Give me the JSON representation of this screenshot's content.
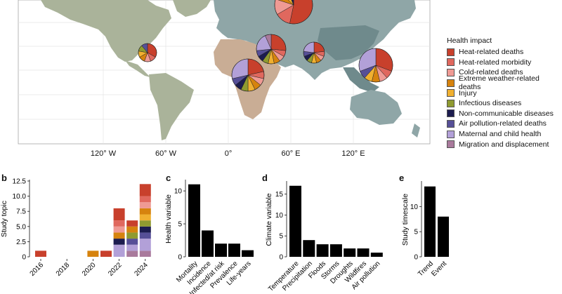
{
  "colors": {
    "heat_deaths": "#c8402c",
    "heat_morbidity": "#e0685e",
    "cold_deaths": "#ef9a94",
    "extreme_weather": "#d6830e",
    "injury": "#f0b030",
    "infectious": "#8f9a30",
    "ncd": "#1c1c4f",
    "air_pollution": "#564f97",
    "maternal": "#b2a0d8",
    "migration": "#a97a9c"
  },
  "map": {
    "legend_title": "Health impact",
    "legend": [
      {
        "label": "Heat-related deaths",
        "key": "heat_deaths"
      },
      {
        "label": "Heat-related morbidity",
        "key": "heat_morbidity"
      },
      {
        "label": "Cold-related deaths",
        "key": "cold_deaths"
      },
      {
        "label": "Extreme weather-related deaths",
        "key": "extreme_weather"
      },
      {
        "label": "Injury",
        "key": "injury"
      },
      {
        "label": "Infectious diseases",
        "key": "infectious"
      },
      {
        "label": "Non-communicable diseases",
        "key": "ncd"
      },
      {
        "label": "Air pollution-related deaths",
        "key": "air_pollution"
      },
      {
        "label": "Maternal and child health",
        "key": "maternal"
      },
      {
        "label": "Migration and displacement",
        "key": "migration"
      }
    ],
    "lon_labels": [
      "120° W",
      "60° W",
      "0°",
      "60° E",
      "120° E"
    ],
    "pies": [
      {
        "region": "Europe",
        "values": [
          8,
          2,
          2,
          1,
          1,
          0,
          1,
          0,
          0,
          0
        ]
      },
      {
        "region": "North America",
        "values": [
          3,
          1,
          1,
          1,
          1,
          1,
          0,
          1,
          0,
          0
        ]
      },
      {
        "region": "Middle East",
        "values": [
          4,
          1,
          1,
          1,
          1,
          1,
          1,
          1,
          3,
          1
        ]
      },
      {
        "region": "South Asia",
        "values": [
          3,
          1,
          1,
          1,
          1,
          1,
          1,
          1,
          3,
          0
        ]
      },
      {
        "region": "Africa",
        "values": [
          3,
          1,
          1,
          1,
          1,
          1,
          1,
          1,
          4,
          0
        ]
      },
      {
        "region": "Southeast Asia",
        "values": [
          4,
          1,
          1,
          1,
          1,
          0,
          0,
          1,
          4,
          0
        ]
      }
    ]
  },
  "chart_data": [
    {
      "panel": "b",
      "type": "bar",
      "stacked": true,
      "ylabel": "Study topic",
      "xlabel": "",
      "yticks": [
        "0",
        "2.5",
        "5.0",
        "7.5",
        "10.0",
        "12.5"
      ],
      "ylim": [
        0,
        12.5
      ],
      "xticks": [
        "2016",
        "2018",
        "2020",
        "2022",
        "2024"
      ],
      "categories": [
        "2016",
        "2020",
        "2021",
        "2022",
        "2023",
        "2024"
      ],
      "x": [
        2016,
        2020,
        2021,
        2022,
        2023,
        2024
      ],
      "series": [
        {
          "key": "migration",
          "values": [
            0,
            0,
            0,
            0,
            1,
            1
          ]
        },
        {
          "key": "maternal",
          "values": [
            0,
            0,
            0,
            2,
            1,
            2
          ]
        },
        {
          "key": "air_pollution",
          "values": [
            0,
            0,
            0,
            0,
            1,
            1
          ]
        },
        {
          "key": "ncd",
          "values": [
            0,
            0,
            0,
            1,
            0,
            1
          ]
        },
        {
          "key": "infectious",
          "values": [
            0,
            0,
            0,
            0,
            1,
            1
          ]
        },
        {
          "key": "injury",
          "values": [
            0,
            0,
            0,
            0,
            0,
            1
          ]
        },
        {
          "key": "extreme_weather",
          "values": [
            0,
            1,
            0,
            1,
            1,
            1
          ]
        },
        {
          "key": "cold_deaths",
          "values": [
            0,
            0,
            0,
            1,
            0,
            1
          ]
        },
        {
          "key": "heat_morbidity",
          "values": [
            0,
            0,
            0,
            1,
            0,
            1
          ]
        },
        {
          "key": "heat_deaths",
          "values": [
            1,
            0,
            1,
            2,
            1,
            2
          ]
        }
      ]
    },
    {
      "panel": "c",
      "type": "bar",
      "ylabel": "Health variable",
      "yticks": [
        "0",
        "5",
        "10"
      ],
      "ylim": [
        0,
        11.5
      ],
      "categories": [
        "Mortality",
        "Incidence",
        "Infected/at risk",
        "Prevalence",
        "Life-years"
      ],
      "values": [
        11,
        4,
        2,
        2,
        1
      ]
    },
    {
      "panel": "d",
      "type": "bar",
      "ylabel": "Climate variable",
      "yticks": [
        "0",
        "5",
        "10",
        "15"
      ],
      "ylim": [
        0,
        17.8
      ],
      "categories": [
        "Temperature",
        "Precipitation",
        "Floods",
        "Storms",
        "Droughts",
        "Wildfires",
        "Air pollution"
      ],
      "values": [
        17,
        4,
        3,
        3,
        2,
        2,
        1
      ]
    },
    {
      "panel": "e",
      "type": "bar",
      "ylabel": "Study timescale",
      "yticks": [
        "0",
        "5",
        "10"
      ],
      "ylim": [
        0,
        14.8
      ],
      "categories": [
        "Trend",
        "Event"
      ],
      "values": [
        14,
        8
      ]
    }
  ]
}
